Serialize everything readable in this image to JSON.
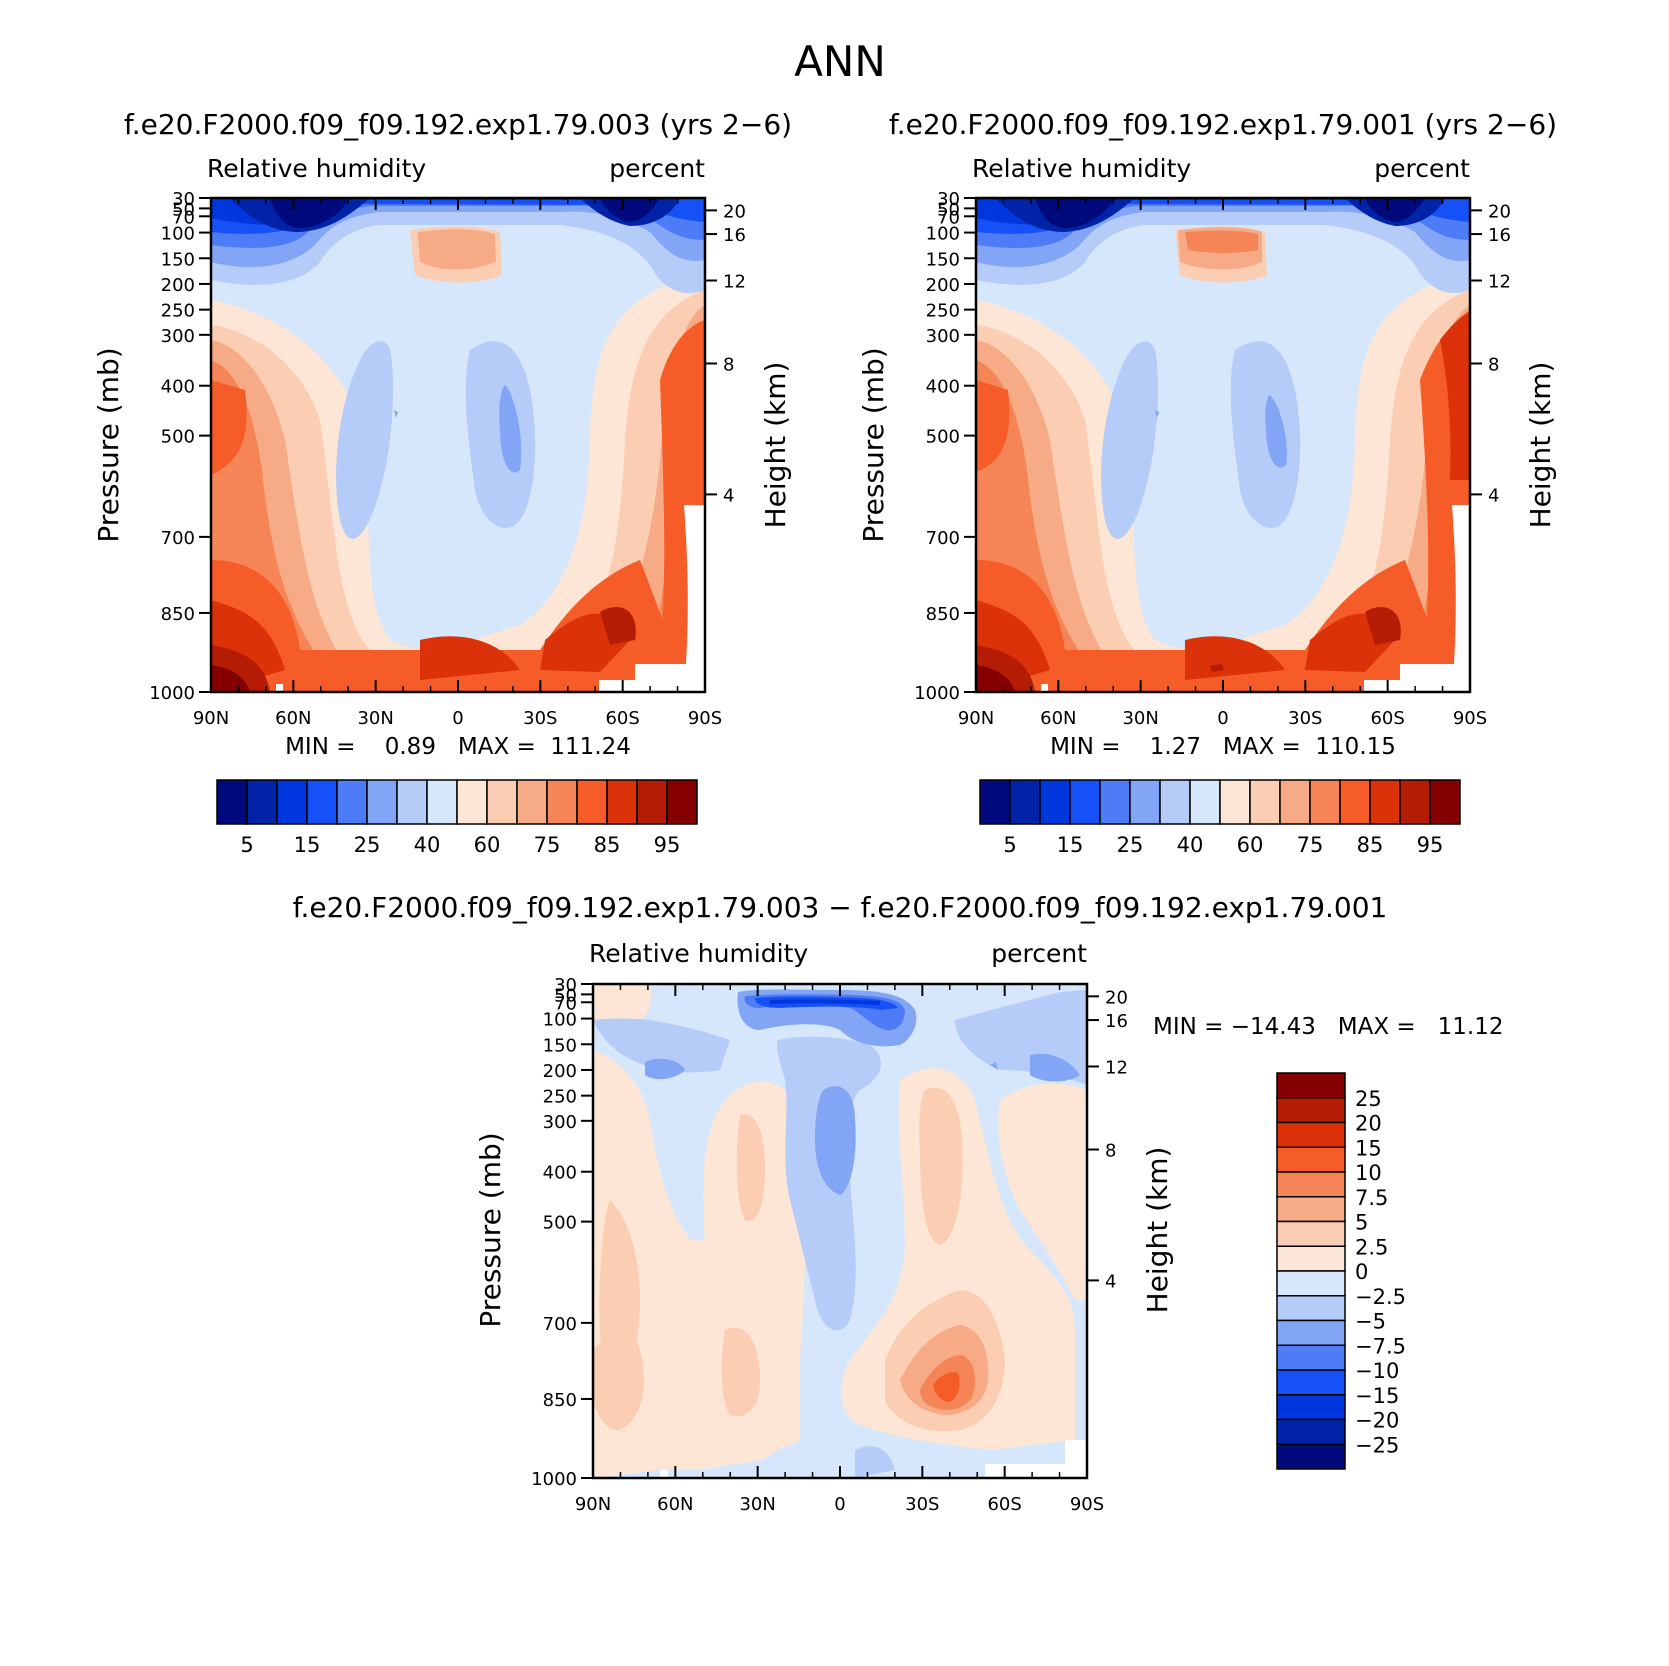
{
  "page_title": "ANN",
  "diff_title": "f.e20.F2000.f09_f09.192.exp1.79.003 − f.e20.F2000.f09_f09.192.exp1.79.001",
  "pressure_ticks": [
    "30",
    "50",
    "70",
    "100",
    "150",
    "200",
    "250",
    "300",
    "400",
    "500",
    "700",
    "850",
    "1000"
  ],
  "height_ticks": [
    "20",
    "16",
    "12",
    "8",
    "4"
  ],
  "lat_ticks": [
    "90N",
    "60N",
    "30N",
    "0",
    "30S",
    "60S",
    "90S"
  ],
  "abs_colors": [
    "#000a7d",
    "#0023a8",
    "#0036dd",
    "#1650f7",
    "#4e7cf6",
    "#82a5f6",
    "#b5cbf8",
    "#d7e7fb",
    "#fde6d5",
    "#fbcdb3",
    "#f7aa86",
    "#f58556",
    "#f55c28",
    "#dc3209",
    "#b51c05",
    "#850000"
  ],
  "abs_levels_shown": [
    "5",
    "15",
    "25",
    "40",
    "60",
    "75",
    "85",
    "95"
  ],
  "diff_colors": [
    "#850000",
    "#b51c05",
    "#dc3209",
    "#f55c28",
    "#f58556",
    "#f7aa86",
    "#fbcdb3",
    "#fde6d5",
    "#d7e7fb",
    "#b5cbf8",
    "#82a5f6",
    "#4e7cf6",
    "#1650f7",
    "#0036dd",
    "#0023a8",
    "#000a7d"
  ],
  "diff_levels": [
    "25",
    "20",
    "15",
    "10",
    "7.5",
    "5",
    "2.5",
    "0",
    "−2.5",
    "−5",
    "−7.5",
    "−10",
    "−15",
    "−20",
    "−25"
  ],
  "chart_data": [
    {
      "type": "heatmap",
      "title": "f.e20.F2000.f09_f09.192.exp1.79.003 (yrs 2−6)",
      "left_label": "Relative humidity",
      "right_label": "percent",
      "xlabel": "",
      "ylabel": "Pressure (mb)",
      "y2label": "Height (km)",
      "stats": "MIN =    0.89   MAX =  111.24",
      "min": 0.89,
      "max": 111.24
    },
    {
      "type": "heatmap",
      "title": "f.e20.F2000.f09_f09.192.exp1.79.001 (yrs 2−6)",
      "left_label": "Relative humidity",
      "right_label": "percent",
      "xlabel": "",
      "ylabel": "Pressure (mb)",
      "y2label": "Height (km)",
      "stats": "MIN =    1.27   MAX =  110.15",
      "min": 1.27,
      "max": 110.15
    },
    {
      "type": "heatmap",
      "title": "",
      "left_label": "Relative humidity",
      "right_label": "percent",
      "xlabel": "",
      "ylabel": "Pressure (mb)",
      "y2label": "Height (km)",
      "stats": "MIN = −14.43   MAX =   11.12",
      "min": -14.43,
      "max": 11.12
    }
  ]
}
